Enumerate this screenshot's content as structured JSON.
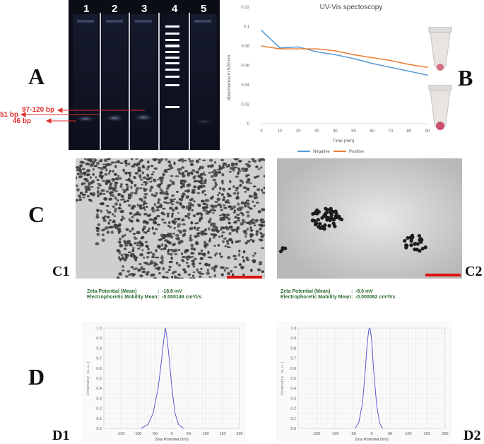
{
  "panels": {
    "A": "A",
    "B": "B",
    "C": "C",
    "C1": "C1",
    "C2": "C2",
    "D": "D",
    "D1": "D1",
    "D2": "D2"
  },
  "gel": {
    "lanes": [
      "1",
      "2",
      "3",
      "4",
      "5"
    ],
    "band_labels": [
      "97-120 bp",
      "51 bp",
      "46 bp"
    ],
    "colors": {
      "background": "#0b0d16",
      "arrow": "#e03030"
    }
  },
  "tem": {
    "C1": {
      "scale_bar_color": "#dd1111"
    },
    "C2": {
      "scale_bar_color": "#dd1111"
    }
  },
  "zeta": [
    {
      "mean_label": "Zeta Potential (Mean)",
      "mean_value": "-18.8 mV",
      "mobility_label": "Electrophoretic Mobility Mean",
      "mobility_value": "-0.000146 cm²/Vs"
    },
    {
      "mean_label": "Zeta Potential (Mean)",
      "mean_value": "-8.0 mV",
      "mobility_label": "Electrophoretic Mobility Mean",
      "mobility_value": "-0.000062 cm²/Vs"
    }
  ],
  "chart_data": [
    {
      "type": "line",
      "title": "UV-Vis spectoscopy",
      "xlabel": "Time (min)",
      "ylabel": "Absorbance in 520 nm",
      "x": [
        0,
        10,
        20,
        30,
        40,
        50,
        60,
        70,
        80,
        90
      ],
      "ylim": [
        0,
        0.12
      ],
      "yticks": [
        "0",
        "0.02",
        "0.04",
        "0.06",
        "0.08",
        "0.1",
        "0.12"
      ],
      "xticks": [
        "0",
        "10",
        "20",
        "30",
        "40",
        "50",
        "60",
        "70",
        "80",
        "90"
      ],
      "series": [
        {
          "name": "Negative",
          "color": "#5b9bd5",
          "values": [
            0.096,
            0.078,
            0.079,
            0.074,
            0.071,
            0.067,
            0.062,
            0.058,
            0.054,
            0.05
          ]
        },
        {
          "name": "Positive",
          "color": "#ed7d31",
          "values": [
            0.08,
            0.077,
            0.077,
            0.077,
            0.075,
            0.071,
            0.068,
            0.065,
            0.061,
            0.058
          ]
        }
      ],
      "legend": "bottom",
      "grid": false
    },
    {
      "type": "line",
      "xlabel": "Zeta Potential (mV)",
      "ylabel": "Intensity (a.u.)",
      "xticks": [
        "-150",
        "-100",
        "-50",
        "0",
        "50",
        "100",
        "150",
        "200"
      ],
      "yticks": [
        "0.0",
        "0.1",
        "0.2",
        "0.3",
        "0.4",
        "0.5",
        "0.6",
        "0.7",
        "0.8",
        "0.9",
        "1.0"
      ],
      "xlim": [
        -200,
        200
      ],
      "ylim": [
        0,
        1.0
      ],
      "series": [
        {
          "color": "#4a4acf",
          "x": [
            -90,
            -70,
            -55,
            -40,
            -30,
            -22,
            -18.8,
            -15,
            -8,
            0,
            10,
            20,
            35
          ],
          "values": [
            0,
            0.04,
            0.15,
            0.4,
            0.68,
            0.92,
            1.0,
            0.93,
            0.72,
            0.42,
            0.15,
            0.04,
            0
          ]
        }
      ],
      "grid": true
    },
    {
      "type": "line",
      "xlabel": "Zeta Potential (mV)",
      "ylabel": "Intensity (a.u.)",
      "xticks": [
        "-150",
        "-100",
        "-50",
        "0",
        "50",
        "100",
        "150",
        "200"
      ],
      "yticks": [
        "0.0",
        "0.1",
        "0.2",
        "0.3",
        "0.4",
        "0.5",
        "0.6",
        "0.7",
        "0.8",
        "0.9",
        "1.0"
      ],
      "xlim": [
        -200,
        200
      ],
      "ylim": [
        0,
        1.0
      ],
      "series": [
        {
          "color": "#4a4acf",
          "x": [
            -45,
            -35,
            -25,
            -18,
            -12,
            -8,
            -6,
            -4,
            0,
            6,
            14,
            22,
            30
          ],
          "values": [
            0,
            0.06,
            0.25,
            0.55,
            0.85,
            0.98,
            1.0,
            0.99,
            0.88,
            0.55,
            0.22,
            0.05,
            0
          ]
        }
      ],
      "grid": true
    }
  ]
}
